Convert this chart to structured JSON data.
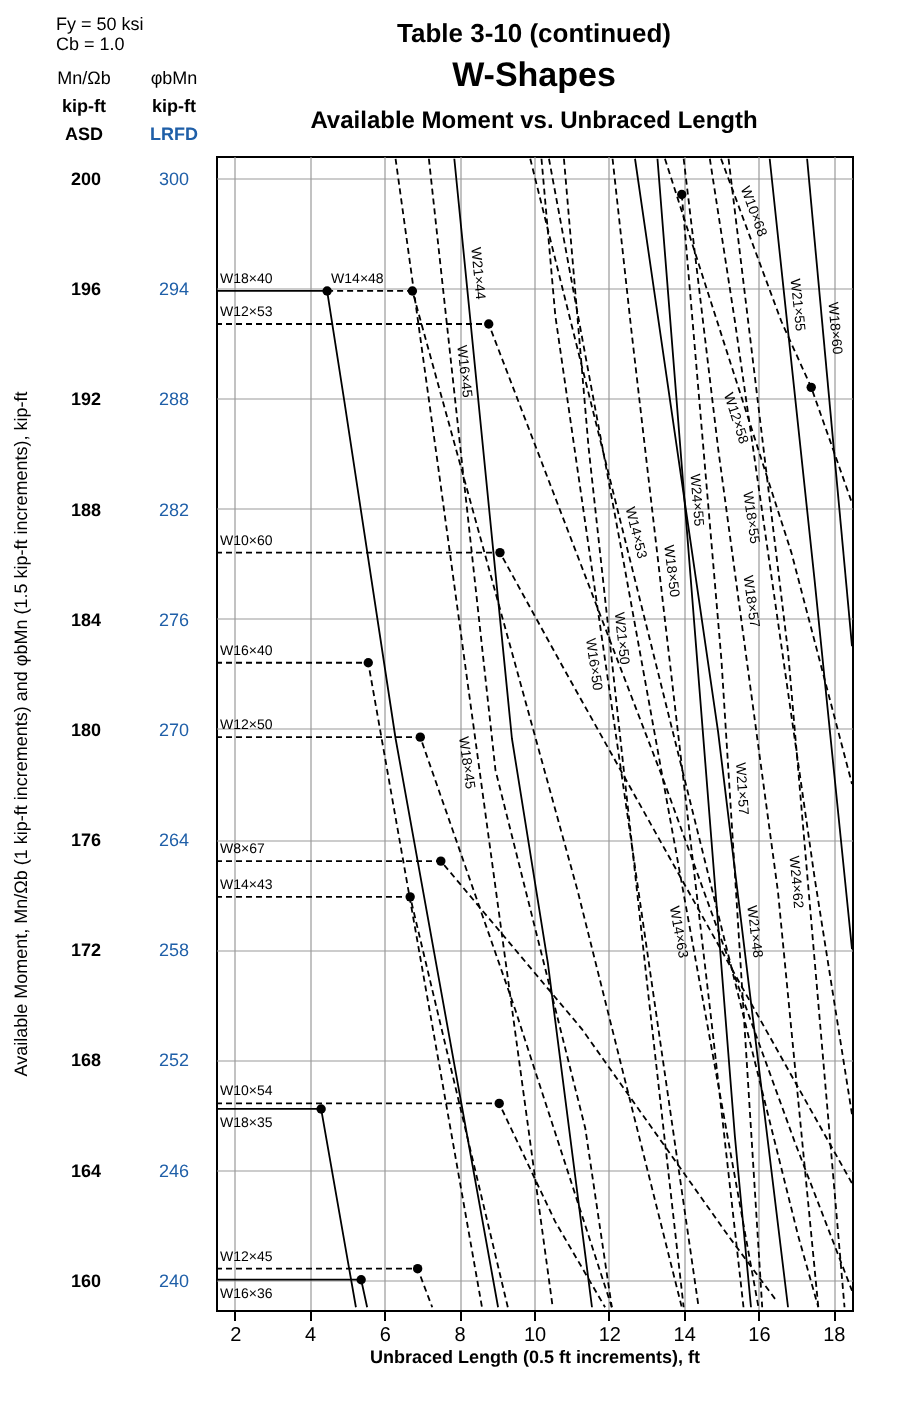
{
  "chart_data": {
    "type": "line",
    "title": "Table 3-10 (continued)",
    "subtitle": "W-Shapes",
    "xlabel": "Unbraced Length (0.5 ft increments), ft",
    "ylabel": "Available Moment, Mn/Ωb (1 kip-ft increments) and φbMn (1.5 kip-ft increments), kip-ft",
    "annotations": [
      "Available Moment vs. Unbraced Length",
      "Fy = 50 ksi",
      "Cb = 1.0",
      "Mn/Ωb",
      "φbMn",
      "kip-ft",
      "kip-ft",
      "ASD",
      "LRFD"
    ],
    "xlim": [
      1.5,
      18.5
    ],
    "xticks": [
      2,
      4,
      6,
      8,
      10,
      12,
      14,
      16,
      18
    ],
    "ylim": [
      158.9,
      200.8
    ],
    "yticks": [
      160,
      164,
      168,
      172,
      176,
      180,
      184,
      188,
      192,
      196,
      200
    ],
    "y2lim": [
      238.35,
      301.2
    ],
    "y2ticks": [
      240,
      246,
      252,
      258,
      264,
      270,
      276,
      282,
      288,
      294,
      300
    ],
    "grid": true,
    "series": [
      {
        "name": "W18×40",
        "color": "#000000",
        "line_style": "solid",
        "x": [
          1.5,
          4.47,
          4.93,
          6.3,
          9.04
        ],
        "values": [
          195.9,
          195.9,
          191.9,
          179.65,
          159.0
        ]
      },
      {
        "name": "W14×48",
        "color": "#000000",
        "line_style": "dashed",
        "x": [
          4.47,
          6.75,
          11.17,
          13.95
        ],
        "values": [
          195.9,
          195.9,
          174.1,
          159.0
        ]
      },
      {
        "name": "W12×53",
        "color": "#000000",
        "line_style": "dashed",
        "x": [
          1.5,
          8.79,
          13.5,
          16.97,
          18.5
        ],
        "values": [
          194.7,
          194.7,
          178.0,
          165.0,
          159.6
        ]
      },
      {
        "name": "W10×60",
        "color": "#000000",
        "line_style": "dashed",
        "x": [
          1.5,
          9.09,
          10.75,
          16.97,
          18.5
        ],
        "values": [
          186.4,
          186.4,
          182.3,
          167.2,
          163.5
        ]
      },
      {
        "name": "W16×40",
        "color": "#000000",
        "line_style": "dashed",
        "x": [
          1.5,
          5.57,
          8.61
        ],
        "values": [
          182.4,
          182.4,
          159.0
        ]
      },
      {
        "name": "W12×50",
        "color": "#000000",
        "line_style": "dashed",
        "x": [
          1.5,
          6.96,
          9.5,
          12.08
        ],
        "values": [
          179.7,
          179.7,
          169.8,
          159.0
        ]
      },
      {
        "name": "W8×67",
        "color": "#000000",
        "line_style": "dashed",
        "x": [
          1.5,
          7.51,
          11.28,
          15.19,
          16.5
        ],
        "values": [
          175.2,
          175.2,
          169.1,
          161.6,
          159.2
        ]
      },
      {
        "name": "W14×43",
        "color": "#000000",
        "line_style": "dashed",
        "x": [
          1.5,
          6.69,
          9.3
        ],
        "values": [
          173.9,
          173.9,
          159.0
        ]
      },
      {
        "name": "W10×54",
        "color": "#000000",
        "line_style": "dashed",
        "x": [
          1.5,
          9.07,
          10.57,
          11.9
        ],
        "values": [
          166.4,
          166.4,
          162.1,
          159.0
        ]
      },
      {
        "name": "W18×35",
        "color": "#000000",
        "line_style": "solid",
        "x": [
          1.5,
          4.31,
          5.24
        ],
        "values": [
          166.2,
          166.2,
          159.0
        ]
      },
      {
        "name": "W12×45",
        "color": "#000000",
        "line_style": "dashed",
        "x": [
          1.5,
          6.89,
          7.28
        ],
        "values": [
          160.4,
          160.4,
          159.0
        ]
      },
      {
        "name": "W16×36",
        "color": "#000000",
        "line_style": "solid",
        "x": [
          1.5,
          5.38,
          5.54
        ],
        "values": [
          160.0,
          160.0,
          159.0
        ]
      },
      {
        "name": "W18×45",
        "color": "#000000",
        "line_style": "dashed",
        "x": [
          6.3,
          7.44,
          10.5
        ],
        "values": [
          200.7,
          189.5,
          159.0
        ]
      },
      {
        "name": "W16×45",
        "color": "#000000",
        "line_style": "dashed",
        "x": [
          7.19,
          8.97,
          11.37,
          12.08
        ],
        "values": [
          200.7,
          178.5,
          165.5,
          159.0
        ]
      },
      {
        "name": "W21×44",
        "color": "#000000",
        "line_style": "solid",
        "x": [
          7.87,
          9.41,
          10.37,
          11.55
        ],
        "values": [
          200.7,
          179.65,
          171.5,
          159.0
        ]
      },
      {
        "name": "W16×50",
        "color": "#000000",
        "line_style": "dashed",
        "x": [
          10.2,
          10.57,
          14.4
        ],
        "values": [
          200.7,
          195.0,
          159.0
        ]
      },
      {
        "name": "W14×53",
        "color": "#000000",
        "line_style": "dashed",
        "x": [
          9.9,
          17.06,
          17.6
        ],
        "values": [
          200.7,
          161.6,
          159.0
        ]
      },
      {
        "name": "W21×50",
        "color": "#000000",
        "line_style": "dashed",
        "x": [
          10.8,
          11.46,
          13.06,
          14.0
        ],
        "values": [
          200.7,
          190.2,
          170.3,
          159.0
        ]
      },
      {
        "name": "W14×63",
        "color": "#000000",
        "line_style": "dashed",
        "x": [
          10.4,
          12.35,
          16.0
        ],
        "values": [
          200.7,
          186.4,
          159.0
        ]
      },
      {
        "name": "W18×50",
        "color": "#000000",
        "line_style": "dashed",
        "x": [
          12.1,
          12.6,
          14.75,
          15.6
        ],
        "values": [
          200.7,
          194.5,
          169.3,
          159.0
        ]
      },
      {
        "name": "W21×48",
        "color": "#000000",
        "line_style": "solid",
        "x": [
          12.7,
          14.92,
          16.79
        ],
        "values": [
          200.7,
          179.9,
          159.0
        ]
      },
      {
        "name": "W21×57",
        "color": "#000000",
        "line_style": "dashed",
        "x": [
          13.95,
          15.01,
          16.1
        ],
        "values": [
          199.4,
          182.5,
          159.0
        ]
      },
      {
        "name": "W24×55",
        "color": "#000000",
        "line_style": "solid",
        "x": [
          13.3,
          15.37,
          15.8
        ],
        "values": [
          200.7,
          165.2,
          159.0
        ]
      },
      {
        "name": "W18×55",
        "color": "#000000",
        "line_style": "dashed",
        "x": [
          14.7,
          15.37,
          17.5,
          18.5
        ],
        "values": [
          200.7,
          194.8,
          174.6,
          166.0
        ]
      },
      {
        "name": "W18×57",
        "color": "#000000",
        "line_style": "dashed",
        "x": [
          14.0,
          14.92,
          16.52,
          17.6
        ],
        "values": [
          200.7,
          190.2,
          174.1,
          159.0
        ]
      },
      {
        "name": "W24×62",
        "color": "#000000",
        "line_style": "dashed",
        "x": [
          15.2,
          16.79,
          18.3
        ],
        "values": [
          200.7,
          182.8,
          159.0
        ]
      },
      {
        "name": "W21×55",
        "color": "#000000",
        "line_style": "solid",
        "x": [
          16.3,
          17.5,
          18.5
        ],
        "values": [
          200.7,
          185.4,
          172.0
        ]
      },
      {
        "name": "W18×60",
        "color": "#000000",
        "line_style": "solid",
        "x": [
          17.3,
          18.5
        ],
        "values": [
          200.7,
          183.0
        ]
      },
      {
        "name": "W10×68",
        "color": "#000000",
        "line_style": "dashed",
        "x": [
          15.0,
          16.61,
          17.41,
          18.5
        ],
        "values": [
          200.7,
          194.8,
          192.4,
          188.2
        ]
      },
      {
        "name": "W12×58",
        "color": "#000000",
        "line_style": "dashed",
        "x": [
          13.5,
          16.88,
          18.5
        ],
        "values": [
          200.7,
          186.4,
          178.0
        ]
      },
      {
        "type": "scatter",
        "marker": "circle",
        "color": "#000000",
        "x": [
          4.47,
          6.75,
          8.79,
          9.09,
          5.57,
          6.96,
          7.51,
          6.69,
          9.07,
          4.31,
          6.89,
          5.38,
          13.95,
          17.41
        ],
        "values": [
          195.9,
          195.9,
          194.7,
          186.4,
          182.4,
          179.7,
          175.2,
          173.9,
          166.4,
          166.2,
          160.4,
          160.0,
          199.4,
          192.4
        ]
      }
    ]
  }
}
